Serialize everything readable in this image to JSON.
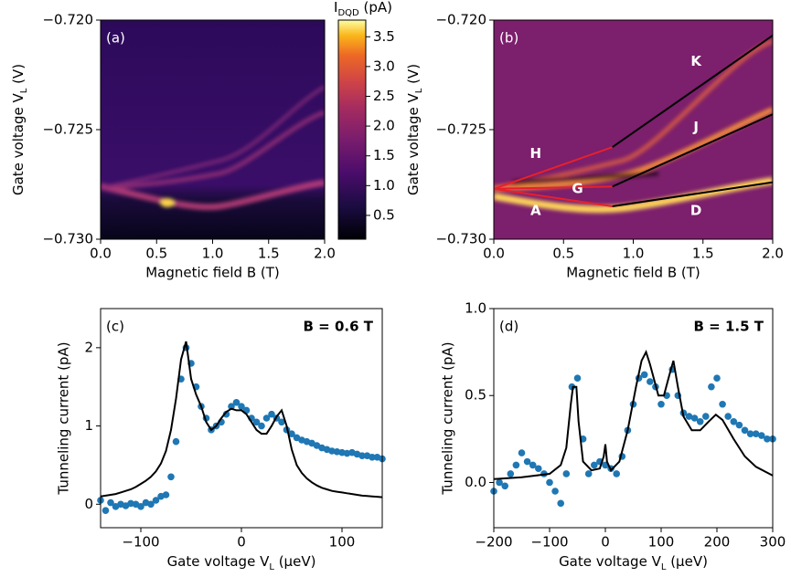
{
  "chart_data": [
    {
      "type": "heatmap",
      "panel_label": "(a)",
      "xlabel": "Magnetic field B (T)",
      "ylabel": [
        "Gate voltage V",
        "L",
        " (V)"
      ],
      "xlim": [
        0,
        2
      ],
      "ylim": [
        -0.73,
        -0.72
      ],
      "xticks": [
        {
          "value": 0,
          "label": "0.0"
        },
        0.5,
        {
          "value": 1,
          "label": "1.0"
        },
        1.5,
        {
          "value": 2,
          "label": "2.0"
        }
      ],
      "yticks": [
        {
          "value": -0.73,
          "label": "−0.730"
        },
        {
          "value": -0.725,
          "label": "−0.725"
        },
        {
          "value": -0.72,
          "label": "−0.720"
        }
      ],
      "colorbar": {
        "label": [
          "I",
          "DQD",
          " (pA)"
        ],
        "lim": [
          0.1,
          3.78
        ],
        "ticks": [
          0.5,
          {
            "value": 1,
            "label": "1.0"
          },
          1.5,
          {
            "value": 2,
            "label": "2.0"
          },
          2.5,
          {
            "value": 3,
            "label": "3.0"
          },
          3.5
        ]
      }
    },
    {
      "type": "heatmap",
      "panel_label": "(b)",
      "xlabel": "Magnetic field B (T)",
      "ylabel": [
        "Gate voltage V",
        "L",
        " (V)"
      ],
      "xlim": [
        0,
        2
      ],
      "ylim": [
        -0.73,
        -0.72
      ],
      "xticks": [
        {
          "value": 0,
          "label": "0.0"
        },
        0.5,
        {
          "value": 1,
          "label": "1.0"
        },
        1.5,
        {
          "value": 2,
          "label": "2.0"
        }
      ],
      "yticks": [
        {
          "value": -0.73,
          "label": "−0.730"
        },
        {
          "value": -0.725,
          "label": "−0.725"
        },
        {
          "value": -0.72,
          "label": "−0.720"
        }
      ],
      "series": [
        {
          "type": "line",
          "color": "#000000",
          "x": [
            0.85,
            2.0
          ],
          "values": [
            -0.7258,
            -0.7207
          ]
        },
        {
          "type": "line",
          "color": "#000000",
          "x": [
            0.85,
            2.0
          ],
          "values": [
            -0.7276,
            -0.7243
          ]
        },
        {
          "type": "line",
          "color": "#000000",
          "x": [
            0.85,
            2.0
          ],
          "values": [
            -0.7285,
            -0.7274
          ]
        },
        {
          "type": "line",
          "color": "#e8202a",
          "x": [
            0,
            0.85
          ],
          "values": [
            -0.7277,
            -0.7258
          ]
        },
        {
          "type": "line",
          "color": "#e8202a",
          "x": [
            0,
            0.85
          ],
          "values": [
            -0.7277,
            -0.7276
          ]
        },
        {
          "type": "line",
          "color": "#e8202a",
          "x": [
            0,
            0.85
          ],
          "values": [
            -0.7277,
            -0.7285
          ]
        }
      ],
      "annotations": [
        {
          "text": "K",
          "x": 1.45,
          "y": -0.7219
        },
        {
          "text": "J",
          "x": 1.45,
          "y": -0.7249
        },
        {
          "text": "H",
          "x": 0.3,
          "y": -0.7261
        },
        {
          "text": "G",
          "x": 0.6,
          "y": -0.7277
        },
        {
          "text": "A",
          "x": 0.3,
          "y": -0.7287
        },
        {
          "text": "D",
          "x": 1.45,
          "y": -0.7287
        }
      ]
    },
    {
      "type": "scatter",
      "panel_label": "(c)",
      "title": "B = 0.6 T",
      "xlabel": [
        "Gate voltage V",
        "L",
        " (μeV)"
      ],
      "ylabel": "Tunneling current (pA)",
      "xlim": [
        -140,
        140
      ],
      "ylim": [
        -0.3,
        2.5
      ],
      "xticks": [
        {
          "value": -100,
          "label": "−100"
        },
        0,
        100
      ],
      "yticks": [
        0,
        1,
        2
      ],
      "series": [
        {
          "type": "scatter",
          "color": "#1f77b4",
          "x": [
            -140,
            -135,
            -130,
            -125,
            -120,
            -115,
            -110,
            -105,
            -100,
            -95,
            -90,
            -85,
            -80,
            -75,
            -70,
            -65,
            -60,
            -55,
            -50,
            -45,
            -40,
            -35,
            -30,
            -25,
            -20,
            -15,
            -10,
            -5,
            0,
            5,
            10,
            15,
            20,
            25,
            30,
            35,
            40,
            45,
            50,
            55,
            60,
            65,
            70,
            75,
            80,
            85,
            90,
            95,
            100,
            105,
            110,
            115,
            120,
            125,
            130,
            135,
            140
          ],
          "values": [
            0.05,
            -0.08,
            0.02,
            -0.03,
            0.0,
            -0.02,
            0.01,
            0.0,
            -0.03,
            0.02,
            0.0,
            0.05,
            0.1,
            0.12,
            0.35,
            0.8,
            1.6,
            2.0,
            1.8,
            1.5,
            1.25,
            1.1,
            0.95,
            1.0,
            1.05,
            1.15,
            1.25,
            1.3,
            1.25,
            1.2,
            1.1,
            1.05,
            1.0,
            1.1,
            1.15,
            1.1,
            1.05,
            0.95,
            0.9,
            0.85,
            0.82,
            0.8,
            0.78,
            0.75,
            0.72,
            0.7,
            0.68,
            0.67,
            0.66,
            0.65,
            0.66,
            0.64,
            0.62,
            0.62,
            0.6,
            0.6,
            0.58
          ]
        },
        {
          "type": "line",
          "color": "#000000",
          "x": [
            -140,
            -135,
            -130,
            -125,
            -120,
            -115,
            -110,
            -105,
            -100,
            -95,
            -90,
            -85,
            -80,
            -75,
            -70,
            -65,
            -60,
            -55,
            -50,
            -45,
            -40,
            -35,
            -30,
            -25,
            -20,
            -15,
            -10,
            -5,
            0,
            5,
            10,
            15,
            20,
            25,
            30,
            35,
            40,
            45,
            50,
            55,
            60,
            65,
            70,
            75,
            80,
            85,
            90,
            95,
            100,
            105,
            110,
            115,
            120,
            125,
            130,
            135,
            140
          ],
          "values": [
            0.1,
            0.11,
            0.12,
            0.13,
            0.15,
            0.17,
            0.19,
            0.22,
            0.26,
            0.3,
            0.35,
            0.42,
            0.52,
            0.68,
            0.95,
            1.35,
            1.85,
            2.08,
            1.6,
            1.4,
            1.25,
            1.05,
            0.95,
            1.0,
            1.1,
            1.18,
            1.22,
            1.2,
            1.2,
            1.15,
            1.05,
            0.95,
            0.9,
            0.9,
            1.0,
            1.12,
            1.2,
            1.0,
            0.7,
            0.5,
            0.4,
            0.33,
            0.28,
            0.24,
            0.21,
            0.19,
            0.17,
            0.16,
            0.15,
            0.14,
            0.13,
            0.12,
            0.11,
            0.105,
            0.1,
            0.095,
            0.09
          ]
        }
      ]
    },
    {
      "type": "scatter",
      "panel_label": "(d)",
      "title": "B = 1.5 T",
      "xlabel": [
        "Gate voltage V",
        "L",
        " (μeV)"
      ],
      "ylabel": "Tunneling current (pA)",
      "xlim": [
        -200,
        300
      ],
      "ylim": [
        -0.26,
        1.0
      ],
      "xticks": [
        {
          "value": -200,
          "label": "−200"
        },
        {
          "value": -100,
          "label": "−100"
        },
        0,
        100,
        200,
        300
      ],
      "yticks": [
        {
          "value": 0,
          "label": "0.0"
        },
        0.5,
        {
          "value": 1,
          "label": "1.0"
        }
      ],
      "series": [
        {
          "type": "scatter",
          "color": "#1f77b4",
          "x": [
            -200,
            -190,
            -180,
            -170,
            -160,
            -150,
            -140,
            -130,
            -120,
            -110,
            -100,
            -90,
            -80,
            -70,
            -60,
            -50,
            -40,
            -30,
            -20,
            -10,
            0,
            10,
            20,
            30,
            40,
            50,
            60,
            70,
            80,
            90,
            100,
            110,
            120,
            130,
            140,
            150,
            160,
            170,
            180,
            190,
            200,
            210,
            220,
            230,
            240,
            250,
            260,
            270,
            280,
            290,
            300
          ],
          "values": [
            -0.05,
            0.0,
            -0.02,
            0.05,
            0.1,
            0.17,
            0.12,
            0.1,
            0.08,
            0.05,
            0.0,
            -0.05,
            -0.12,
            0.05,
            0.55,
            0.6,
            0.25,
            0.05,
            0.1,
            0.12,
            0.1,
            0.08,
            0.05,
            0.15,
            0.3,
            0.45,
            0.6,
            0.62,
            0.58,
            0.55,
            0.45,
            0.5,
            0.65,
            0.5,
            0.4,
            0.38,
            0.37,
            0.35,
            0.38,
            0.55,
            0.6,
            0.45,
            0.38,
            0.35,
            0.33,
            0.3,
            0.28,
            0.28,
            0.27,
            0.25,
            0.25
          ]
        },
        {
          "type": "line",
          "color": "#000000",
          "x": [
            -200,
            -150,
            -100,
            -80,
            -70,
            -62,
            -58,
            -52,
            -48,
            -40,
            -25,
            -10,
            -3,
            0,
            3,
            10,
            25,
            40,
            55,
            65,
            73,
            80,
            95,
            105,
            115,
            122,
            130,
            140,
            155,
            170,
            185,
            198,
            210,
            230,
            250,
            270,
            300
          ],
          "values": [
            0.02,
            0.03,
            0.05,
            0.1,
            0.2,
            0.45,
            0.55,
            0.55,
            0.35,
            0.12,
            0.07,
            0.08,
            0.15,
            0.22,
            0.12,
            0.07,
            0.12,
            0.3,
            0.55,
            0.7,
            0.75,
            0.68,
            0.5,
            0.5,
            0.62,
            0.7,
            0.55,
            0.38,
            0.3,
            0.3,
            0.35,
            0.39,
            0.36,
            0.25,
            0.15,
            0.09,
            0.04
          ]
        }
      ]
    }
  ]
}
